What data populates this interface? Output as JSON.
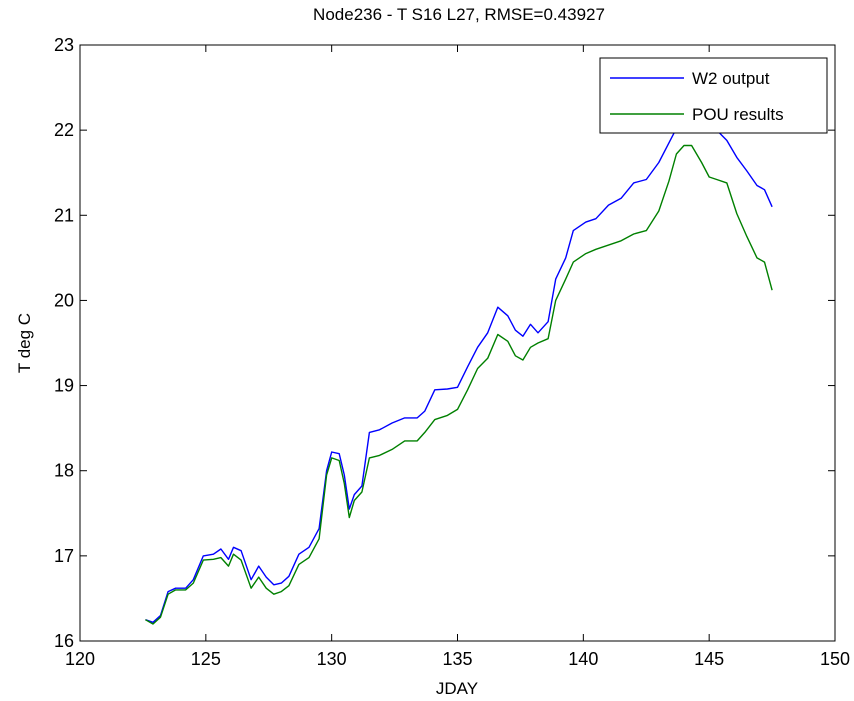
{
  "chart_data": {
    "type": "line",
    "title": "Node236 - T S16 L27, RMSE=0.43927",
    "xlabel": "JDAY",
    "ylabel": "T deg C",
    "xlim": [
      120,
      150
    ],
    "ylim": [
      16,
      23
    ],
    "xticks": [
      120,
      125,
      130,
      135,
      140,
      145,
      150
    ],
    "yticks": [
      16,
      17,
      18,
      19,
      20,
      21,
      22,
      23
    ],
    "grid": false,
    "legend_position": "top-right",
    "series": [
      {
        "name": "W2 output",
        "color": "#0000ff",
        "points": [
          [
            122.6,
            16.25
          ],
          [
            122.9,
            16.22
          ],
          [
            123.2,
            16.3
          ],
          [
            123.5,
            16.58
          ],
          [
            123.8,
            16.62
          ],
          [
            124.2,
            16.62
          ],
          [
            124.5,
            16.72
          ],
          [
            124.9,
            17.0
          ],
          [
            125.3,
            17.02
          ],
          [
            125.6,
            17.08
          ],
          [
            125.9,
            16.96
          ],
          [
            126.1,
            17.1
          ],
          [
            126.4,
            17.06
          ],
          [
            126.8,
            16.72
          ],
          [
            127.1,
            16.88
          ],
          [
            127.4,
            16.75
          ],
          [
            127.7,
            16.66
          ],
          [
            128.0,
            16.68
          ],
          [
            128.3,
            16.76
          ],
          [
            128.7,
            17.02
          ],
          [
            129.1,
            17.1
          ],
          [
            129.5,
            17.32
          ],
          [
            129.8,
            18.0
          ],
          [
            130.0,
            18.22
          ],
          [
            130.3,
            18.2
          ],
          [
            130.5,
            17.95
          ],
          [
            130.7,
            17.55
          ],
          [
            130.9,
            17.72
          ],
          [
            131.2,
            17.82
          ],
          [
            131.5,
            18.45
          ],
          [
            131.9,
            18.48
          ],
          [
            132.4,
            18.56
          ],
          [
            132.9,
            18.62
          ],
          [
            133.4,
            18.62
          ],
          [
            133.7,
            18.7
          ],
          [
            134.1,
            18.95
          ],
          [
            134.6,
            18.96
          ],
          [
            135.0,
            18.98
          ],
          [
            135.4,
            19.22
          ],
          [
            135.8,
            19.45
          ],
          [
            136.2,
            19.62
          ],
          [
            136.6,
            19.92
          ],
          [
            137.0,
            19.82
          ],
          [
            137.3,
            19.65
          ],
          [
            137.6,
            19.58
          ],
          [
            137.9,
            19.72
          ],
          [
            138.2,
            19.62
          ],
          [
            138.6,
            19.75
          ],
          [
            138.9,
            20.25
          ],
          [
            139.3,
            20.5
          ],
          [
            139.6,
            20.82
          ],
          [
            140.1,
            20.92
          ],
          [
            140.5,
            20.96
          ],
          [
            141.0,
            21.12
          ],
          [
            141.5,
            21.2
          ],
          [
            142.0,
            21.38
          ],
          [
            142.5,
            21.42
          ],
          [
            143.0,
            21.62
          ],
          [
            143.4,
            21.85
          ],
          [
            143.7,
            22.02
          ],
          [
            144.0,
            22.08
          ],
          [
            144.3,
            22.28
          ],
          [
            144.7,
            22.32
          ],
          [
            145.0,
            22.12
          ],
          [
            145.3,
            22.0
          ],
          [
            145.7,
            21.88
          ],
          [
            146.1,
            21.68
          ],
          [
            146.5,
            21.52
          ],
          [
            146.9,
            21.35
          ],
          [
            147.2,
            21.3
          ],
          [
            147.5,
            21.1
          ]
        ]
      },
      {
        "name": "POU results",
        "color": "#008000",
        "points": [
          [
            122.6,
            16.25
          ],
          [
            122.9,
            16.2
          ],
          [
            123.2,
            16.28
          ],
          [
            123.5,
            16.55
          ],
          [
            123.8,
            16.6
          ],
          [
            124.2,
            16.6
          ],
          [
            124.5,
            16.68
          ],
          [
            124.9,
            16.95
          ],
          [
            125.3,
            16.96
          ],
          [
            125.6,
            16.98
          ],
          [
            125.9,
            16.88
          ],
          [
            126.1,
            17.02
          ],
          [
            126.4,
            16.95
          ],
          [
            126.8,
            16.62
          ],
          [
            127.1,
            16.75
          ],
          [
            127.4,
            16.62
          ],
          [
            127.7,
            16.55
          ],
          [
            128.0,
            16.58
          ],
          [
            128.3,
            16.65
          ],
          [
            128.7,
            16.9
          ],
          [
            129.1,
            16.98
          ],
          [
            129.5,
            17.2
          ],
          [
            129.8,
            17.95
          ],
          [
            130.0,
            18.15
          ],
          [
            130.3,
            18.12
          ],
          [
            130.5,
            17.85
          ],
          [
            130.7,
            17.45
          ],
          [
            130.9,
            17.65
          ],
          [
            131.2,
            17.75
          ],
          [
            131.5,
            18.15
          ],
          [
            131.9,
            18.18
          ],
          [
            132.4,
            18.25
          ],
          [
            132.9,
            18.35
          ],
          [
            133.4,
            18.35
          ],
          [
            133.7,
            18.45
          ],
          [
            134.1,
            18.6
          ],
          [
            134.6,
            18.65
          ],
          [
            135.0,
            18.72
          ],
          [
            135.4,
            18.95
          ],
          [
            135.8,
            19.2
          ],
          [
            136.2,
            19.32
          ],
          [
            136.6,
            19.6
          ],
          [
            137.0,
            19.52
          ],
          [
            137.3,
            19.35
          ],
          [
            137.6,
            19.3
          ],
          [
            137.9,
            19.45
          ],
          [
            138.2,
            19.5
          ],
          [
            138.6,
            19.55
          ],
          [
            138.9,
            20.0
          ],
          [
            139.3,
            20.25
          ],
          [
            139.6,
            20.45
          ],
          [
            140.1,
            20.55
          ],
          [
            140.5,
            20.6
          ],
          [
            141.0,
            20.65
          ],
          [
            141.5,
            20.7
          ],
          [
            142.0,
            20.78
          ],
          [
            142.5,
            20.82
          ],
          [
            143.0,
            21.05
          ],
          [
            143.4,
            21.4
          ],
          [
            143.7,
            21.72
          ],
          [
            144.0,
            21.82
          ],
          [
            144.3,
            21.82
          ],
          [
            144.7,
            21.62
          ],
          [
            145.0,
            21.45
          ],
          [
            145.3,
            21.42
          ],
          [
            145.7,
            21.38
          ],
          [
            146.1,
            21.02
          ],
          [
            146.5,
            20.75
          ],
          [
            146.9,
            20.5
          ],
          [
            147.2,
            20.45
          ],
          [
            147.5,
            20.12
          ]
        ]
      }
    ]
  }
}
